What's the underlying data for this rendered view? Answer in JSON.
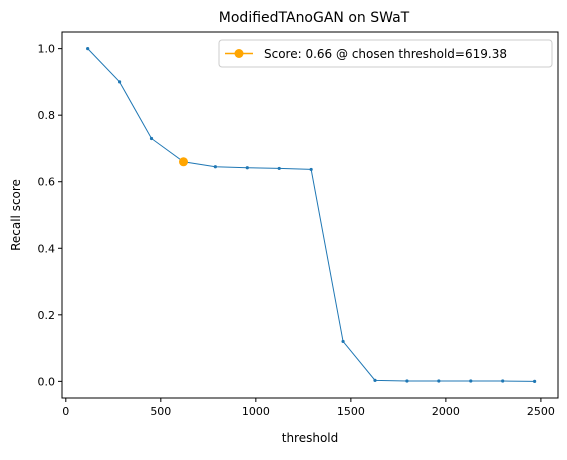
{
  "chart_data": {
    "type": "line",
    "title": "ModifiedTAnoGAN on SWaT",
    "xlabel": "threshold",
    "ylabel": "Recall score",
    "xlim": [
      -20,
      2590
    ],
    "ylim": [
      -0.05,
      1.05
    ],
    "xticks": [
      0,
      500,
      1000,
      1500,
      2000,
      2500
    ],
    "yticks": [
      0.0,
      0.2,
      0.4,
      0.6,
      0.8,
      1.0
    ],
    "grid": false,
    "legend_position": "upper right",
    "series": [
      {
        "color": "#1f77b4",
        "x": [
          115,
          283,
          451,
          619.38,
          787,
          955,
          1123,
          1291,
          1459,
          1627,
          1795,
          1963,
          2131,
          2299,
          2467
        ],
        "y": [
          1.0,
          0.9,
          0.73,
          0.66,
          0.645,
          0.642,
          0.64,
          0.637,
          0.12,
          0.003,
          0.001,
          0.001,
          0.001,
          0.001,
          0.0
        ]
      }
    ],
    "highlight": {
      "name": "Score: 0.66 @ chosen threshold=619.38",
      "x": 619.38,
      "y": 0.66,
      "color": "#ffa500"
    }
  }
}
